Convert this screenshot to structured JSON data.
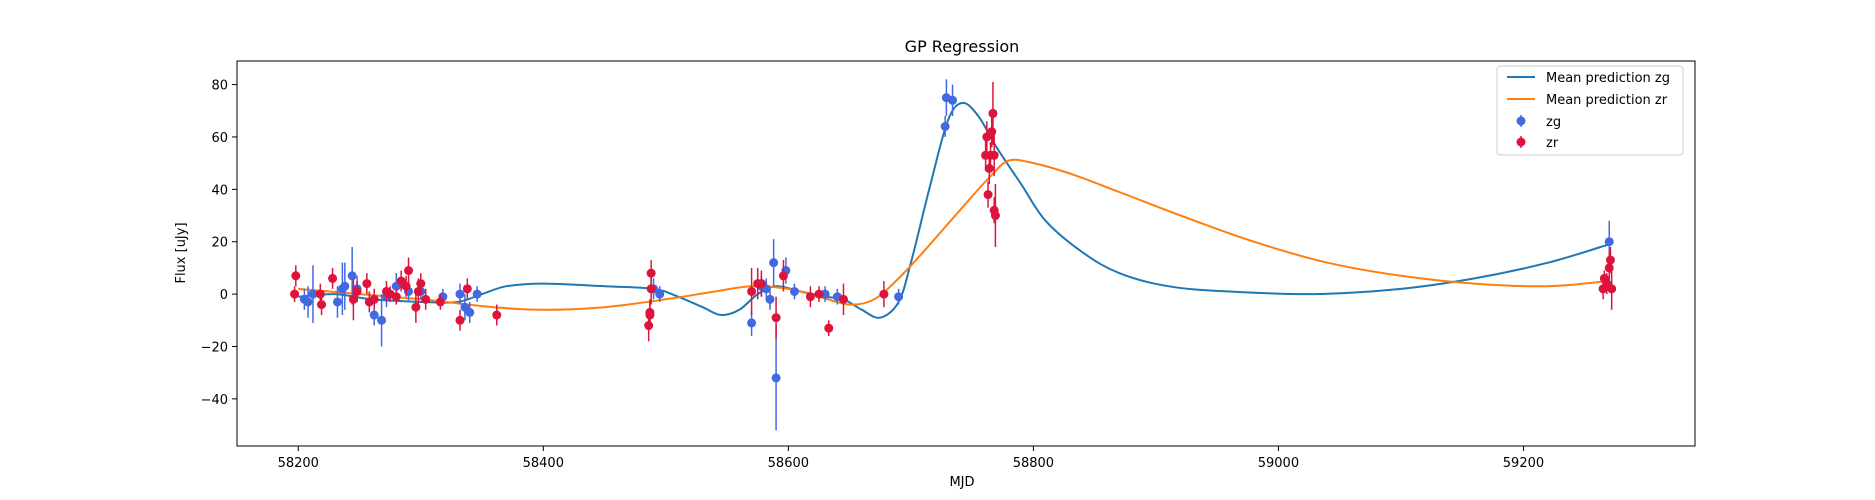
{
  "chart_data": {
    "type": "scatter",
    "title": "GP Regression",
    "xlabel": "MJD",
    "ylabel": "Flux [uJy]",
    "xlim": [
      58150,
      59340
    ],
    "ylim": [
      -58,
      89
    ],
    "xticks": [
      58200,
      58400,
      58600,
      58800,
      59000,
      59200
    ],
    "yticks": [
      -40,
      -20,
      0,
      20,
      40,
      60,
      80
    ],
    "grid": false,
    "legend_position": "top-right",
    "legend": [
      "Mean prediction zg",
      "Mean prediction zr",
      "zg",
      "zr"
    ],
    "colors": {
      "zg_line": "#1f77b4",
      "zr_line": "#ff7f0e",
      "zg_points": "#4169e1",
      "zr_points": "#dc143c"
    },
    "series": [
      {
        "name": "Mean prediction zg",
        "kind": "line",
        "points": [
          [
            58200,
            -1
          ],
          [
            58230,
            0
          ],
          [
            58260,
            -2
          ],
          [
            58300,
            -3
          ],
          [
            58330,
            -3
          ],
          [
            58350,
            0
          ],
          [
            58370,
            3
          ],
          [
            58400,
            4
          ],
          [
            58450,
            3
          ],
          [
            58490,
            2
          ],
          [
            58510,
            -1
          ],
          [
            58530,
            -5
          ],
          [
            58545,
            -8
          ],
          [
            58560,
            -6
          ],
          [
            58575,
            0
          ],
          [
            58590,
            3
          ],
          [
            58610,
            1
          ],
          [
            58630,
            -1
          ],
          [
            58645,
            -2
          ],
          [
            58660,
            -6
          ],
          [
            58675,
            -9
          ],
          [
            58690,
            -3
          ],
          [
            58700,
            12
          ],
          [
            58715,
            40
          ],
          [
            58730,
            66
          ],
          [
            58742,
            73
          ],
          [
            58755,
            68
          ],
          [
            58770,
            56
          ],
          [
            58790,
            42
          ],
          [
            58810,
            28
          ],
          [
            58840,
            16
          ],
          [
            58870,
            8
          ],
          [
            58910,
            3
          ],
          [
            58960,
            1
          ],
          [
            59030,
            0
          ],
          [
            59100,
            2
          ],
          [
            59160,
            6
          ],
          [
            59220,
            12
          ],
          [
            59270,
            19
          ]
        ]
      },
      {
        "name": "Mean prediction zr",
        "kind": "line",
        "points": [
          [
            58200,
            2
          ],
          [
            58250,
            0
          ],
          [
            58300,
            -2
          ],
          [
            58360,
            -5
          ],
          [
            58400,
            -6
          ],
          [
            58450,
            -5
          ],
          [
            58500,
            -2
          ],
          [
            58540,
            1
          ],
          [
            58570,
            3
          ],
          [
            58600,
            2
          ],
          [
            58625,
            -1
          ],
          [
            58650,
            -4
          ],
          [
            58670,
            -2
          ],
          [
            58690,
            6
          ],
          [
            58710,
            16
          ],
          [
            58740,
            32
          ],
          [
            58765,
            45
          ],
          [
            58780,
            51
          ],
          [
            58800,
            50
          ],
          [
            58830,
            46
          ],
          [
            58870,
            39
          ],
          [
            58920,
            30
          ],
          [
            58980,
            20
          ],
          [
            59040,
            12
          ],
          [
            59100,
            7
          ],
          [
            59160,
            4
          ],
          [
            59220,
            3
          ],
          [
            59270,
            5
          ]
        ]
      },
      {
        "name": "zg",
        "kind": "errorbar",
        "points": [
          [
            58205,
            -2,
            4
          ],
          [
            58208,
            -3,
            6
          ],
          [
            58212,
            0,
            11
          ],
          [
            58232,
            -3,
            6
          ],
          [
            58236,
            2,
            10
          ],
          [
            58238,
            3,
            9
          ],
          [
            58244,
            7,
            11
          ],
          [
            58248,
            2,
            5
          ],
          [
            58262,
            -8,
            4
          ],
          [
            58268,
            -10,
            10
          ],
          [
            58272,
            -1,
            4
          ],
          [
            58280,
            3,
            5
          ],
          [
            58290,
            1,
            4
          ],
          [
            58300,
            1,
            3
          ],
          [
            58318,
            -1,
            3
          ],
          [
            58332,
            0,
            4
          ],
          [
            58336,
            -5,
            5
          ],
          [
            58340,
            -7,
            4
          ],
          [
            58346,
            0,
            3
          ],
          [
            58490,
            2,
            4
          ],
          [
            58495,
            0,
            3
          ],
          [
            58570,
            -11,
            5
          ],
          [
            58578,
            3,
            4
          ],
          [
            58582,
            2,
            4
          ],
          [
            58585,
            -2,
            4
          ],
          [
            58588,
            12,
            9
          ],
          [
            58590,
            -32,
            20
          ],
          [
            58598,
            9,
            5
          ],
          [
            58605,
            1,
            3
          ],
          [
            58630,
            0,
            3
          ],
          [
            58640,
            -1,
            3
          ],
          [
            58690,
            -1,
            3
          ],
          [
            58728,
            64,
            4
          ],
          [
            58729,
            75,
            7
          ],
          [
            58734,
            74,
            6
          ],
          [
            59270,
            20,
            8
          ]
        ]
      },
      {
        "name": "zr",
        "kind": "errorbar",
        "points": [
          [
            58197,
            0,
            3
          ],
          [
            58198,
            7,
            4
          ],
          [
            58218,
            0,
            4
          ],
          [
            58219,
            -4,
            4
          ],
          [
            58228,
            6,
            4
          ],
          [
            58245,
            -2,
            8
          ],
          [
            58248,
            1,
            4
          ],
          [
            58256,
            4,
            4
          ],
          [
            58258,
            -3,
            4
          ],
          [
            58262,
            -2,
            4
          ],
          [
            58272,
            1,
            4
          ],
          [
            58275,
            0,
            3
          ],
          [
            58280,
            -1,
            3
          ],
          [
            58284,
            5,
            4
          ],
          [
            58288,
            3,
            4
          ],
          [
            58290,
            9,
            5
          ],
          [
            58296,
            -5,
            6
          ],
          [
            58298,
            1,
            5
          ],
          [
            58300,
            4,
            4
          ],
          [
            58304,
            -2,
            4
          ],
          [
            58316,
            -3,
            3
          ],
          [
            58332,
            -10,
            4
          ],
          [
            58338,
            2,
            4
          ],
          [
            58362,
            -8,
            4
          ],
          [
            58486,
            -12,
            6
          ],
          [
            58487,
            -8,
            5
          ],
          [
            58487,
            -7,
            5
          ],
          [
            58488,
            2,
            6
          ],
          [
            58488,
            8,
            5
          ],
          [
            58570,
            1,
            9
          ],
          [
            58575,
            4,
            6
          ],
          [
            58578,
            4,
            5
          ],
          [
            58590,
            -9,
            8
          ],
          [
            58596,
            7,
            6
          ],
          [
            58618,
            -1,
            4
          ],
          [
            58625,
            0,
            3
          ],
          [
            58633,
            -13,
            3
          ],
          [
            58645,
            -2,
            6
          ],
          [
            58678,
            0,
            5
          ],
          [
            58761,
            53,
            6
          ],
          [
            58762,
            60,
            6
          ],
          [
            58763,
            38,
            5
          ],
          [
            58764,
            48,
            6
          ],
          [
            58765,
            53,
            5
          ],
          [
            58766,
            62,
            6
          ],
          [
            58767,
            69,
            12
          ],
          [
            58768,
            53,
            8
          ],
          [
            58768,
            32,
            5
          ],
          [
            58769,
            30,
            12
          ],
          [
            59265,
            2,
            4
          ],
          [
            59266,
            6,
            3
          ],
          [
            59268,
            4,
            4
          ],
          [
            59270,
            10,
            6
          ],
          [
            59271,
            13,
            5
          ],
          [
            59272,
            2,
            8
          ]
        ]
      }
    ]
  }
}
